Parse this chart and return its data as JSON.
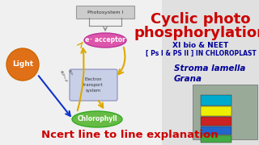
{
  "bg_color": "#e0e0e0",
  "title_line1": "Cyclic photo",
  "title_line2": "phosphorylation",
  "subtitle1": "XI bio & NEET",
  "subtitle2": "[ Ps I & PS II ] IN CHLOROPLAST",
  "label_stroma": "Stroma lamella",
  "label_grana": "Grana",
  "bottom_text": "Ncert line to line explanation",
  "photosystem_label": "Photosystem I",
  "light_label": "Light",
  "acceptor_label": "e⁻ acceptor",
  "electron_transport_label": "Electron\ntransport\nsystem",
  "chlorophyll_label": "Chlorophyll",
  "title_color": "#cc0000",
  "subtitle1_color": "#000099",
  "subtitle2_color": "#000099",
  "stroma_color": "#000099",
  "grana_color": "#000099",
  "bottom_text_color": "#cc0000",
  "light_circle_color": "#e07018",
  "acceptor_ellipse_color": "#dd55aa",
  "electron_transport_box_color": "#c8d0e8",
  "chlorophyll_ellipse_color": "#66bb44",
  "arrow_color_yellow": "#ddaa00",
  "arrow_color_blue": "#1133cc",
  "photosystem_line_color": "#888888",
  "adp_atp_color": "#555555",
  "ps_box_bg": "#cccccc",
  "book_colors": [
    "#00aacc",
    "#eeee00",
    "#cc2222",
    "#2266cc",
    "#44aa44"
  ],
  "person_bg": "#9aaa99"
}
